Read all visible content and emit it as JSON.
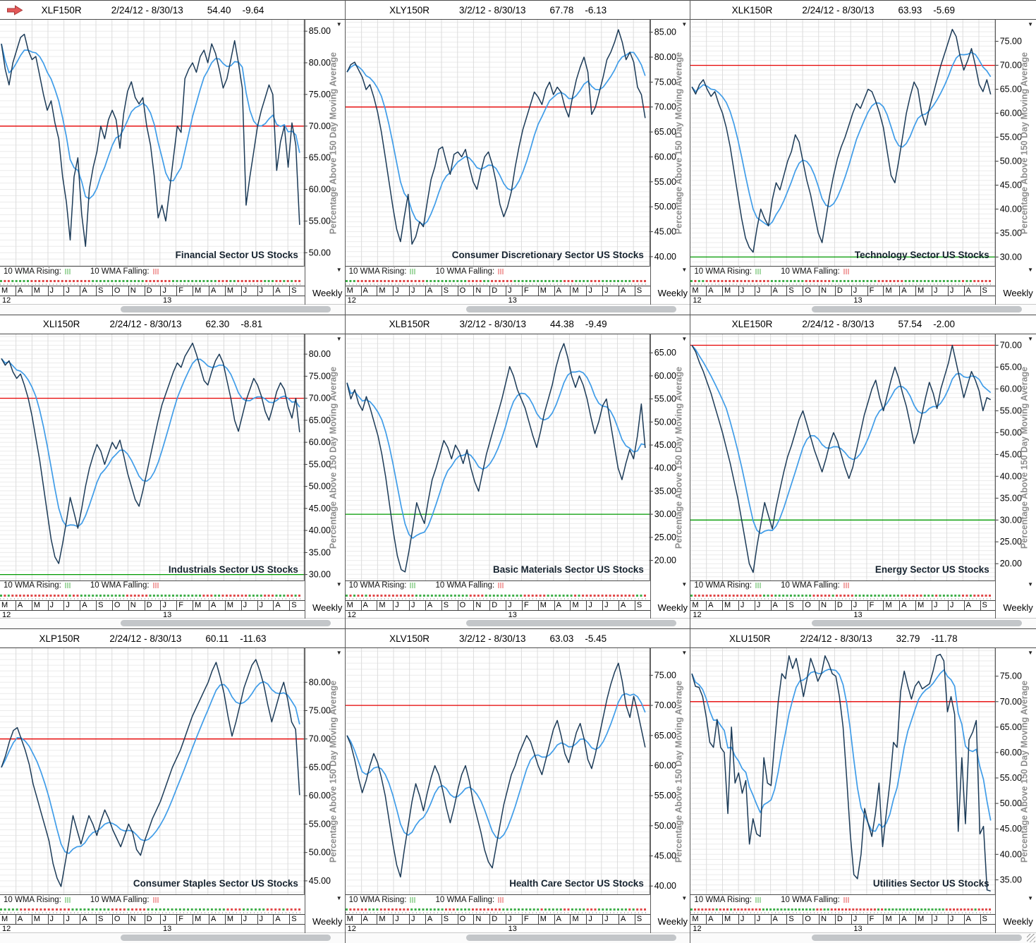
{
  "app": {
    "timeframe_label": "Weekly",
    "legend_rising_label": "10 WMA Rising:",
    "legend_falling_label": "10 WMA Falling:",
    "axis_title": "Percentage Above 150 Day Moving Average",
    "months": [
      "M",
      "A",
      "M",
      "J",
      "J",
      "A",
      "S",
      "O",
      "N",
      "D",
      "J",
      "F",
      "M",
      "A",
      "M",
      "J",
      "J",
      "A",
      "S"
    ],
    "year_left": "12",
    "year_right": "13",
    "year_right_month_index": 10
  },
  "colors": {
    "raw_line": "#1b3a57",
    "wma_line": "#3f9ce8",
    "ref_high": "#e60000",
    "ref_low": "#009a00",
    "grid_h": "#ebebeb",
    "grid_v": "#dcdcdc",
    "axis_title": "#8c8c8c",
    "tick_label": "#000000",
    "sector_label": "#16232f",
    "dot_up": "#3fae49",
    "dot_down": "#e04848",
    "legend_up_ticks": "#a6d9a6",
    "legend_down_ticks": "#f2a6a6",
    "arrow_fill": "#e45858",
    "arrow_stroke": "#a83838",
    "border_dark": "#555555"
  },
  "chart_data": [
    {
      "type": "line",
      "ticker": "XLF150R",
      "date_range": "2/24/12 - 8/30/13",
      "last_value": "54.40",
      "change": "-9.64",
      "sector_label": "Financial Sector US Stocks",
      "ylabel": "Percentage Above 150 Day Moving Average",
      "yticks": [
        85,
        80,
        75,
        70,
        65,
        60,
        55,
        50
      ],
      "ylim": [
        47.8,
        86.8
      ],
      "ref_high_value": 70,
      "ref_low_value": null,
      "series": [
        {
          "name": "weekly",
          "values": [
            83,
            79,
            76.5,
            80,
            82,
            84,
            84.5,
            82,
            80.5,
            81,
            78,
            75,
            72.5,
            74,
            70.5,
            68,
            62,
            58,
            52,
            62,
            65,
            56,
            51,
            60,
            63.5,
            66,
            70,
            68,
            71,
            72.5,
            71,
            66.5,
            72,
            75.5,
            77,
            74.5,
            73.5,
            74.5,
            70,
            67,
            62,
            55.5,
            57.5,
            55,
            60,
            65,
            70,
            69,
            77.5,
            79,
            80,
            78.5,
            81,
            82,
            80,
            83,
            81.5,
            79,
            76,
            77.5,
            80.5,
            83.5,
            80,
            76,
            57.5,
            62,
            66,
            70,
            72.5,
            74.5,
            76.5,
            75,
            63,
            67.5,
            70,
            63.5,
            70.5,
            67,
            54.4
          ]
        },
        {
          "name": "10 WMA",
          "values": "derived: 10-period weighted moving average of weekly"
        }
      ]
    },
    {
      "type": "line",
      "ticker": "XLY150R",
      "date_range": "3/2/12 - 8/30/13",
      "last_value": "67.78",
      "change": "-6.13",
      "sector_label": "Consumer Discretionary Sector US Stocks",
      "ylabel": "Percentage Above 150 Day Moving Average",
      "yticks": [
        85,
        80,
        75,
        70,
        65,
        60,
        55,
        50,
        45,
        40
      ],
      "ylim": [
        38,
        87.5
      ],
      "ref_high_value": 70,
      "ref_low_value": null,
      "series": [
        {
          "name": "weekly",
          "values": [
            77,
            78.5,
            79,
            77.5,
            76,
            73.5,
            74.5,
            72,
            69,
            65,
            60,
            55,
            50,
            45.5,
            43,
            48,
            52.5,
            42.5,
            44,
            47,
            46,
            51,
            55.5,
            58,
            61.5,
            62,
            59,
            56.5,
            60.5,
            61,
            60,
            61.5,
            58,
            55,
            53.5,
            57,
            60,
            61,
            58.5,
            55,
            50.5,
            48,
            50,
            53,
            58,
            62,
            65.5,
            68,
            70.5,
            73,
            72,
            70.5,
            73.5,
            75,
            72.5,
            74,
            73,
            70,
            68,
            72,
            75.5,
            78,
            80,
            77,
            68.5,
            70,
            73,
            76,
            79.5,
            81,
            83,
            85.5,
            83,
            79.5,
            81,
            79,
            74,
            72.5,
            67.78
          ]
        },
        {
          "name": "10 WMA",
          "values": "derived: 10-period weighted moving average of weekly"
        }
      ]
    },
    {
      "type": "line",
      "ticker": "XLK150R",
      "date_range": "2/24/12 - 8/30/13",
      "last_value": "63.93",
      "change": "-5.69",
      "sector_label": "Technology Sector US Stocks",
      "ylabel": "Percentage Above 150 Day Moving Average",
      "yticks": [
        75,
        70,
        65,
        60,
        55,
        50,
        45,
        40,
        35,
        30
      ],
      "ylim": [
        28,
        79.5
      ],
      "ref_high_value": 70,
      "ref_low_value": 30,
      "series": [
        {
          "name": "weekly",
          "values": [
            65.5,
            64,
            66,
            67,
            65,
            63.5,
            64.5,
            62,
            60,
            57,
            53,
            48,
            43,
            38,
            34,
            32,
            31,
            36,
            40,
            38,
            36.5,
            42,
            45.5,
            44,
            47,
            50,
            52,
            55.5,
            54,
            50,
            46,
            43,
            39,
            35,
            33,
            38,
            43,
            47,
            50.5,
            53,
            55,
            57.5,
            60,
            62,
            61,
            63,
            65,
            64.5,
            62.5,
            60,
            57,
            52,
            47,
            45.5,
            50,
            55,
            60,
            63.5,
            66.5,
            65,
            60,
            57.5,
            61,
            64,
            67,
            70,
            72.5,
            75,
            77.5,
            76,
            72,
            69,
            71,
            73.5,
            70,
            66,
            64.5,
            67,
            63.93
          ]
        },
        {
          "name": "10 WMA",
          "values": "derived: 10-period weighted moving average of weekly"
        }
      ]
    },
    {
      "type": "line",
      "ticker": "XLI150R",
      "date_range": "2/24/12 - 8/30/13",
      "last_value": "62.30",
      "change": "-8.81",
      "sector_label": "Industrials Sector US Stocks",
      "ylabel": "Percentage Above 150 Day Moving Average",
      "yticks": [
        80,
        75,
        70,
        65,
        60,
        55,
        50,
        45,
        40,
        35,
        30
      ],
      "ylim": [
        28.5,
        84.5
      ],
      "ref_high_value": 70,
      "ref_low_value": 30,
      "series": [
        {
          "name": "weekly",
          "values": [
            79,
            77.5,
            78.5,
            76,
            74.5,
            75.5,
            73,
            70,
            66,
            61,
            56,
            50,
            44,
            38,
            34,
            32.5,
            37,
            42,
            47.5,
            44,
            40.5,
            45,
            50,
            54,
            57,
            59.5,
            58,
            55,
            57.5,
            60,
            58.5,
            60.5,
            57,
            53,
            50,
            47,
            45.5,
            49,
            53,
            57,
            61,
            65,
            68.5,
            71,
            73.5,
            76,
            78,
            77,
            79.5,
            81,
            82.5,
            80,
            77,
            74,
            73,
            76,
            78.5,
            80,
            78,
            74,
            70,
            65,
            62.5,
            66,
            69.5,
            72,
            74.5,
            73,
            70.5,
            67,
            65,
            68,
            71.5,
            73.5,
            72,
            68,
            65.5,
            70,
            62.3
          ]
        },
        {
          "name": "10 WMA",
          "values": "derived: 10-period weighted moving average of weekly"
        }
      ]
    },
    {
      "type": "line",
      "ticker": "XLB150R",
      "date_range": "3/2/12 - 8/30/13",
      "last_value": "44.38",
      "change": "-9.49",
      "sector_label": "Basic Materials Sector US Stocks",
      "ylabel": "Percentage Above 150 Day Moving Average",
      "yticks": [
        65,
        60,
        55,
        50,
        45,
        40,
        35,
        30,
        25,
        20
      ],
      "ylim": [
        15.5,
        69
      ],
      "ref_high_value": null,
      "ref_low_value": 30,
      "series": [
        {
          "name": "weekly",
          "values": [
            58.5,
            55,
            57,
            54,
            52.5,
            55.5,
            53,
            50,
            47,
            43,
            38,
            32,
            26,
            21,
            18,
            17.5,
            22,
            27,
            32.5,
            30,
            28,
            33,
            37.5,
            40,
            43,
            46,
            44.5,
            42,
            45,
            43.5,
            41,
            44,
            40,
            37,
            35,
            39,
            43,
            46,
            49,
            52,
            55,
            58.5,
            62,
            60,
            57,
            55,
            53,
            50,
            47,
            44.5,
            48,
            52,
            55,
            58,
            62,
            65,
            67,
            64,
            60,
            57.5,
            60,
            58,
            55,
            51,
            47.5,
            50,
            53.5,
            55,
            50,
            45,
            40,
            37.5,
            41,
            44,
            42,
            47,
            53.9,
            44.38
          ]
        },
        {
          "name": "10 WMA",
          "values": "derived: 10-period weighted moving average of weekly"
        }
      ]
    },
    {
      "type": "line",
      "ticker": "XLE150R",
      "date_range": "2/24/12 - 8/30/13",
      "last_value": "57.54",
      "change": "-2.00",
      "sector_label": "Energy Sector US Stocks",
      "ylabel": "Percentage Above 150 Day Moving Average",
      "yticks": [
        70,
        65,
        60,
        55,
        50,
        45,
        40,
        35,
        30,
        25,
        20
      ],
      "ylim": [
        16,
        72.5
      ],
      "ref_high_value": 70,
      "ref_low_value": 30,
      "series": [
        {
          "name": "weekly",
          "values": [
            70,
            68.5,
            66,
            64,
            61.5,
            59,
            56,
            53,
            50,
            46.5,
            43,
            39,
            35,
            30,
            25,
            20,
            18,
            24,
            29,
            34,
            31,
            28,
            33,
            37,
            41,
            44.5,
            47,
            50,
            53,
            55,
            52,
            49,
            46,
            43.5,
            41,
            44,
            47.5,
            50,
            48,
            45,
            42,
            39.5,
            42,
            46,
            50,
            54,
            57,
            60,
            62,
            58,
            55,
            58.5,
            62,
            65,
            62.5,
            59,
            56,
            52,
            47.5,
            50,
            54,
            58,
            61.5,
            59,
            55.5,
            60,
            63,
            66,
            70,
            66,
            62,
            58,
            61,
            64,
            62,
            59.5,
            55,
            58,
            57.54
          ]
        },
        {
          "name": "10 WMA",
          "values": "derived: 10-period weighted moving average of weekly"
        }
      ]
    },
    {
      "type": "line",
      "ticker": "XLP150R",
      "date_range": "2/24/12 - 8/30/13",
      "last_value": "60.11",
      "change": "-11.63",
      "sector_label": "Consumer Staples Sector US Stocks",
      "ylabel": "Percentage Above 150 Day Moving Average",
      "yticks": [
        80,
        75,
        70,
        65,
        60,
        55,
        50,
        45
      ],
      "ylim": [
        42.5,
        86
      ],
      "ref_high_value": 70,
      "ref_low_value": null,
      "series": [
        {
          "name": "weekly",
          "values": [
            65,
            67,
            69.5,
            71.5,
            72,
            70,
            68,
            65.5,
            62,
            59.5,
            57,
            54.5,
            52,
            48,
            45.5,
            44,
            48,
            52,
            56.5,
            54,
            51.5,
            54,
            56.5,
            55,
            53,
            55.5,
            57.5,
            56,
            54,
            52.5,
            51,
            53,
            55,
            53.5,
            50.5,
            49.5,
            52,
            54,
            56,
            57.5,
            59,
            61,
            63,
            65,
            66.5,
            68,
            70,
            72,
            74,
            75.5,
            77,
            78.5,
            80,
            82,
            83.5,
            81,
            78,
            74,
            70.5,
            73,
            76,
            79,
            81,
            83,
            84,
            82,
            79.5,
            76,
            73,
            75.5,
            78,
            80,
            77,
            73,
            71.7,
            60.11
          ]
        },
        {
          "name": "10 WMA",
          "values": "derived: 10-period weighted moving average of weekly"
        }
      ]
    },
    {
      "type": "line",
      "ticker": "XLV150R",
      "date_range": "3/2/12 - 8/30/13",
      "last_value": "63.03",
      "change": "-5.45",
      "sector_label": "Health Care Sector US Stocks",
      "ylabel": "Percentage Above 150 Day Moving Average",
      "yticks": [
        75,
        70,
        65,
        60,
        55,
        50,
        45,
        40
      ],
      "ylim": [
        38.5,
        79.5
      ],
      "ref_high_value": 70,
      "ref_low_value": null,
      "series": [
        {
          "name": "weekly",
          "values": [
            65,
            63.5,
            61,
            58,
            55.5,
            57.5,
            60,
            62,
            60.5,
            58,
            55,
            51,
            47,
            43.5,
            41.5,
            46,
            50,
            54,
            57,
            55,
            52.5,
            55.5,
            58,
            60,
            58.5,
            56,
            53,
            50.5,
            53,
            56,
            58.5,
            60,
            57.5,
            54,
            51.5,
            49,
            46,
            44,
            43,
            46.5,
            50,
            53.5,
            56,
            58.5,
            60,
            62,
            63.5,
            65,
            64,
            62,
            60,
            58.5,
            61,
            63.5,
            66,
            67.5,
            65,
            62,
            60.5,
            63,
            65.5,
            67,
            64.5,
            61,
            59.5,
            62,
            65,
            68,
            71,
            73.5,
            75.5,
            77,
            74,
            70,
            68,
            71.5,
            69,
            66,
            63.03
          ]
        },
        {
          "name": "10 WMA",
          "values": "derived: 10-period weighted moving average of weekly"
        }
      ]
    },
    {
      "type": "line",
      "ticker": "XLU150R",
      "date_range": "2/24/12 - 8/30/13",
      "last_value": "32.79",
      "change": "-11.78",
      "sector_label": "Utilities Sector US Stocks",
      "ylabel": "Percentage Above 150 Day Moving Average",
      "yticks": [
        75,
        70,
        65,
        60,
        55,
        50,
        45,
        40,
        35
      ],
      "ylim": [
        32,
        80.5
      ],
      "ref_high_value": 70,
      "ref_low_value": null,
      "series": [
        {
          "name": "weekly",
          "values": [
            75.5,
            73,
            72.8,
            71,
            67,
            62,
            61,
            66.5,
            61,
            60,
            48,
            65,
            54,
            56,
            52,
            54.5,
            42,
            47,
            44,
            43.5,
            59,
            54,
            53.5,
            62,
            70,
            75.5,
            74.5,
            79,
            76.5,
            78.5,
            75,
            71,
            74.5,
            78.5,
            76.5,
            74,
            75.5,
            79,
            77.5,
            75.5,
            75,
            71,
            65,
            55,
            44,
            36,
            35.2,
            40,
            49,
            46,
            43.5,
            48,
            54,
            41.5,
            48,
            54,
            62,
            61,
            72,
            76,
            73,
            70.5,
            73,
            74,
            72.5,
            73,
            73.5,
            76,
            79,
            79.3,
            78,
            68,
            71,
            67.5,
            44.5,
            59,
            46,
            62.5,
            64,
            66.3,
            44,
            45.5,
            33,
            32.79
          ]
        },
        {
          "name": "10 WMA",
          "values": "derived: 10-period weighted moving average of weekly"
        }
      ]
    }
  ]
}
